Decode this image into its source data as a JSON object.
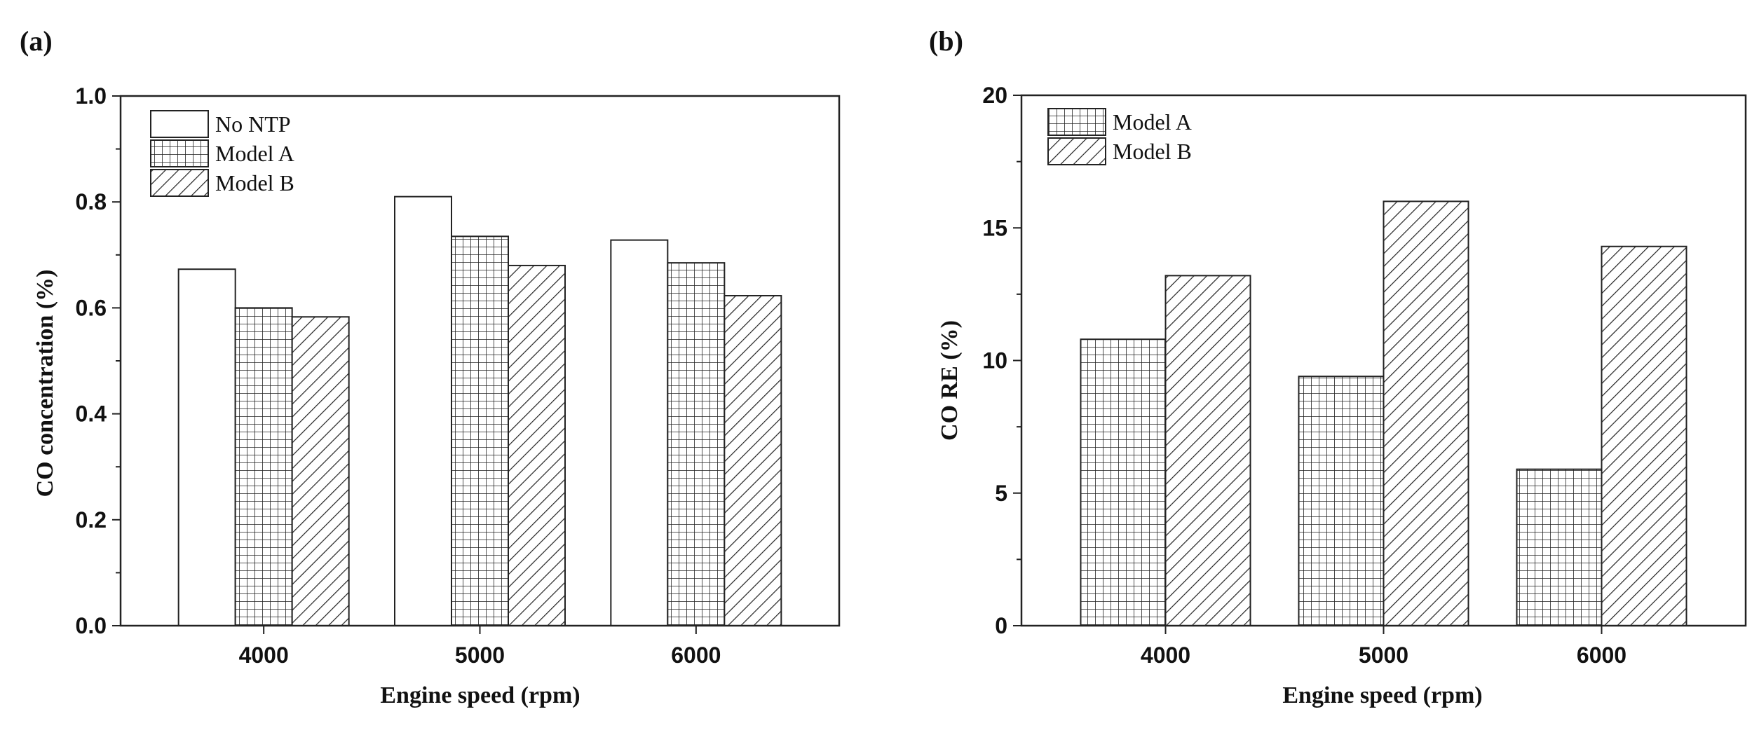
{
  "chart_data": [
    {
      "panel_label": "(a)",
      "type": "bar",
      "title": "",
      "xlabel": "Engine speed (rpm)",
      "ylabel": "CO concentration (%)",
      "ylim": [
        0,
        1.0
      ],
      "yticks": [
        "0.0",
        "0.2",
        "0.4",
        "0.6",
        "0.8",
        "1.0"
      ],
      "categories": [
        "4000",
        "5000",
        "6000"
      ],
      "legend_position": "top-left",
      "series": [
        {
          "name": "No NTP",
          "pattern": "none",
          "values": [
            0.673,
            0.81,
            0.728
          ]
        },
        {
          "name": "Model A",
          "pattern": "grid",
          "values": [
            0.6,
            0.735,
            0.685
          ]
        },
        {
          "name": "Model B",
          "pattern": "diagonal",
          "values": [
            0.583,
            0.68,
            0.623
          ]
        }
      ]
    },
    {
      "panel_label": "(b)",
      "type": "bar",
      "title": "",
      "xlabel": "Engine speed (rpm)",
      "ylabel": "CO RE (%)",
      "ylim": [
        0,
        20
      ],
      "yticks": [
        "0",
        "5",
        "10",
        "15",
        "20"
      ],
      "categories": [
        "4000",
        "5000",
        "6000"
      ],
      "legend_position": "top-left",
      "series": [
        {
          "name": "Model A",
          "pattern": "grid",
          "values": [
            10.8,
            9.4,
            5.9
          ]
        },
        {
          "name": "Model B",
          "pattern": "diagonal",
          "values": [
            13.2,
            16.0,
            14.3
          ]
        }
      ]
    }
  ]
}
